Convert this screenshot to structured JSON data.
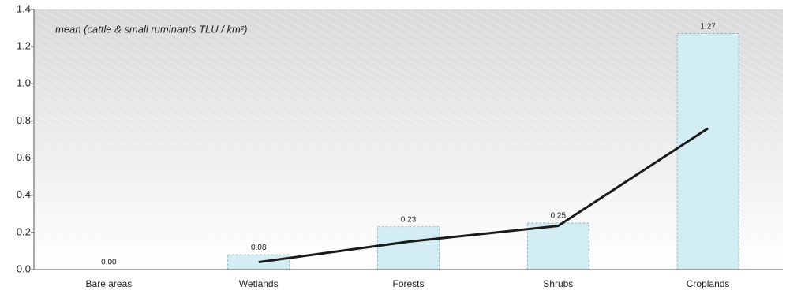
{
  "chart_data": {
    "type": "bar",
    "title": "mean (cattle & small ruminants TLU / km²)",
    "categories": [
      "Bare areas",
      "Wetlands",
      "Forests",
      "Shrubs",
      "Croplands"
    ],
    "values": [
      0,
      0.08,
      0.23,
      0.25,
      1.27
    ],
    "value_labels": [
      "0.00",
      "0.08",
      "0.23",
      "0.25",
      "1.27"
    ],
    "color": "#d3edf5",
    "line": {
      "values": [
        null,
        0.04,
        0.15,
        0.235,
        0.76
      ],
      "color": "#1a1a1a"
    },
    "ylim": [
      0,
      1.4
    ],
    "yticks": [
      {
        "value": 0,
        "label": "0.0"
      },
      0.2,
      0.4,
      0.6,
      0.8,
      {
        "value": 1,
        "label": "1.0"
      },
      1.2,
      1.4
    ],
    "grid": false
  }
}
